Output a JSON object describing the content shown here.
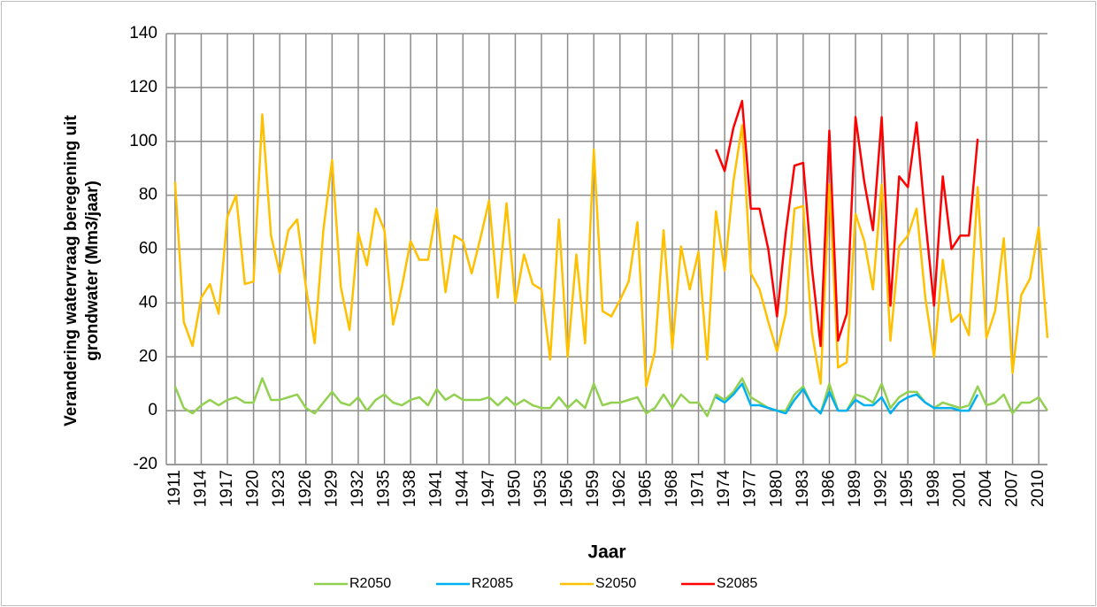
{
  "chart_data": {
    "type": "line",
    "y_label": "Verandering watervraag beregening uit grondwater (Mm3/jaar)",
    "x_label": "Jaar",
    "x": [
      1911,
      1912,
      1913,
      1914,
      1915,
      1916,
      1917,
      1918,
      1919,
      1920,
      1921,
      1922,
      1923,
      1924,
      1925,
      1926,
      1927,
      1928,
      1929,
      1930,
      1931,
      1932,
      1933,
      1934,
      1935,
      1936,
      1937,
      1938,
      1939,
      1940,
      1941,
      1942,
      1943,
      1944,
      1945,
      1946,
      1947,
      1948,
      1949,
      1950,
      1951,
      1952,
      1953,
      1954,
      1955,
      1956,
      1957,
      1958,
      1959,
      1960,
      1961,
      1962,
      1963,
      1964,
      1965,
      1966,
      1967,
      1968,
      1969,
      1970,
      1971,
      1972,
      1973,
      1974,
      1975,
      1976,
      1977,
      1978,
      1979,
      1980,
      1981,
      1982,
      1983,
      1984,
      1985,
      1986,
      1987,
      1988,
      1989,
      1990,
      1991,
      1992,
      1993,
      1994,
      1995,
      1996,
      1997,
      1998,
      1999,
      2000,
      2001,
      2002,
      2003,
      2004,
      2005,
      2006,
      2007,
      2008,
      2009,
      2010,
      2011
    ],
    "xlim": [
      1910,
      2011
    ],
    "xticks": [
      1911,
      1914,
      1917,
      1920,
      1923,
      1926,
      1929,
      1932,
      1935,
      1938,
      1941,
      1944,
      1947,
      1950,
      1953,
      1956,
      1959,
      1962,
      1965,
      1968,
      1971,
      1974,
      1977,
      1980,
      1983,
      1986,
      1989,
      1992,
      1995,
      1998,
      2001,
      2004,
      2007,
      2010
    ],
    "ylim": [
      -20,
      140
    ],
    "yticks": [
      -20,
      0,
      20,
      40,
      60,
      80,
      100,
      120,
      140
    ],
    "grid": true,
    "legend": "bottom",
    "series": [
      {
        "name": "R2050",
        "color": "#92d050",
        "values": [
          9,
          1,
          -1,
          2,
          4,
          2,
          4,
          5,
          3,
          3,
          12,
          4,
          4,
          5,
          6,
          1,
          -1,
          3,
          7,
          3,
          2,
          5,
          0,
          4,
          6,
          3,
          2,
          4,
          5,
          2,
          8,
          4,
          6,
          4,
          4,
          4,
          5,
          2,
          5,
          2,
          4,
          2,
          1,
          1,
          5,
          1,
          4,
          1,
          10,
          2,
          3,
          3,
          4,
          5,
          -1,
          1,
          6,
          1,
          6,
          3,
          3,
          -2,
          6,
          4,
          7,
          12,
          5,
          3,
          1,
          0,
          0,
          6,
          9,
          2,
          -1,
          10,
          0,
          0,
          6,
          5,
          3,
          10,
          1,
          5,
          7,
          7,
          3,
          1,
          3,
          2,
          1,
          2,
          9,
          2,
          3,
          6,
          -1,
          3,
          3,
          5,
          0
        ]
      },
      {
        "name": "R2085",
        "color": "#00b0f0",
        "values": [
          null,
          null,
          null,
          null,
          null,
          null,
          null,
          null,
          null,
          null,
          null,
          null,
          null,
          null,
          null,
          null,
          null,
          null,
          null,
          null,
          null,
          null,
          null,
          null,
          null,
          null,
          null,
          null,
          null,
          null,
          null,
          null,
          null,
          null,
          null,
          null,
          null,
          null,
          null,
          null,
          null,
          null,
          null,
          null,
          null,
          null,
          null,
          null,
          null,
          null,
          null,
          null,
          null,
          null,
          null,
          null,
          null,
          null,
          null,
          null,
          null,
          null,
          5,
          3,
          6,
          10,
          2,
          2,
          1,
          0,
          -1,
          4,
          8,
          2,
          -1,
          7,
          0,
          0,
          4,
          2,
          2,
          5,
          -1,
          3,
          5,
          6,
          3,
          1,
          1,
          1,
          0,
          0,
          6,
          null,
          null,
          null,
          null,
          null,
          null,
          null,
          null
        ]
      },
      {
        "name": "S2050",
        "color": "#ffc000",
        "values": [
          85,
          33,
          24,
          42,
          47,
          36,
          72,
          80,
          47,
          48,
          110,
          65,
          51,
          67,
          71,
          46,
          25,
          67,
          93,
          46,
          30,
          66,
          54,
          75,
          67,
          32,
          46,
          63,
          56,
          56,
          75,
          44,
          65,
          63,
          51,
          64,
          78,
          42,
          77,
          40,
          58,
          47,
          45,
          19,
          71,
          20,
          58,
          25,
          97,
          37,
          35,
          41,
          48,
          70,
          9,
          22,
          67,
          23,
          61,
          45,
          59,
          19,
          74,
          52,
          85,
          106,
          51,
          45,
          33,
          22,
          36,
          75,
          76,
          29,
          10,
          84,
          16,
          18,
          73,
          63,
          45,
          84,
          26,
          61,
          65,
          75,
          42,
          20,
          56,
          33,
          36,
          28,
          83,
          27,
          37,
          64,
          14,
          43,
          49,
          68,
          27
        ]
      },
      {
        "name": "S2085",
        "color": "#ff0000",
        "values": [
          null,
          null,
          null,
          null,
          null,
          null,
          null,
          null,
          null,
          null,
          null,
          null,
          null,
          null,
          null,
          null,
          null,
          null,
          null,
          null,
          null,
          null,
          null,
          null,
          null,
          null,
          null,
          null,
          null,
          null,
          null,
          null,
          null,
          null,
          null,
          null,
          null,
          null,
          null,
          null,
          null,
          null,
          null,
          null,
          null,
          null,
          null,
          null,
          null,
          null,
          null,
          null,
          null,
          null,
          null,
          null,
          null,
          null,
          null,
          null,
          null,
          null,
          97,
          89,
          105,
          115,
          75,
          75,
          60,
          35,
          66,
          91,
          92,
          53,
          24,
          104,
          26,
          36,
          109,
          85,
          67,
          109,
          39,
          87,
          83,
          107,
          71,
          39,
          87,
          60,
          65,
          65,
          101,
          null,
          null,
          null,
          null,
          null,
          null,
          null,
          null
        ]
      }
    ]
  }
}
